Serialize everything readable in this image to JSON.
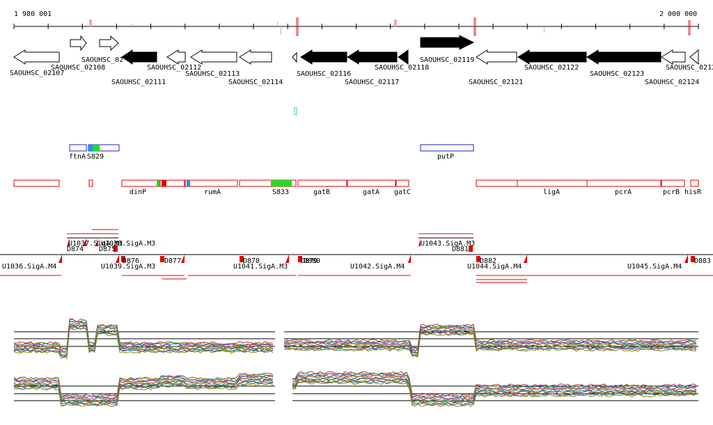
{
  "ruler": {
    "start_label": "1 980 001",
    "end_label": "2 000 000"
  },
  "genes": [
    {
      "label": "SAOUHSC_02107",
      "strand": "-",
      "fill": "open"
    },
    {
      "label": "SAOUHSC_02108",
      "strand": "+",
      "fill": "open"
    },
    {
      "label": "SAOUHSC_02",
      "strand": "+",
      "fill": "open"
    },
    {
      "label": "SAOUHSC_02111",
      "strand": "-",
      "fill": "solid"
    },
    {
      "label": "SAOUHSC_02112",
      "strand": "-",
      "fill": "open"
    },
    {
      "label": "SAOUHSC_02113",
      "strand": "-",
      "fill": "open"
    },
    {
      "label": "SAOUHSC_02114",
      "strand": "-",
      "fill": "open"
    },
    {
      "label": "SAOUHSC_02116",
      "strand": "-",
      "fill": "solid"
    },
    {
      "label": "SAOUHSC_02117",
      "strand": "-",
      "fill": "solid"
    },
    {
      "label": "SAOUHSC_02118",
      "strand": "-",
      "fill": "solid"
    },
    {
      "label": "SAOUHSC_02119",
      "strand": "+",
      "fill": "solid"
    },
    {
      "label": "SAOUHSC_02121",
      "strand": "-",
      "fill": "open"
    },
    {
      "label": "SAOUHSC_02122",
      "strand": "-",
      "fill": "solid"
    },
    {
      "label": "SAOUHSC_02123",
      "strand": "-",
      "fill": "solid"
    },
    {
      "label": "SAOUHSC_02124",
      "strand": "-",
      "fill": "open"
    },
    {
      "label": "SAOUHSC_0212",
      "strand": "-",
      "fill": "open"
    }
  ],
  "blue_features": [
    "ftnA",
    "S829",
    "putP"
  ],
  "red_features": [
    "dinP",
    "rumA",
    "S833",
    "gatB",
    "gatA",
    "gatC",
    "ligA",
    "pcrA",
    "pcrB",
    "hisR"
  ],
  "upper_tus": [
    "U1037.SigA.M3",
    "U1038.SigA.M3",
    "D874",
    "D875",
    "U1043.SigA.M3",
    "D881"
  ],
  "lower_tus": [
    "U1036.SigA.M4",
    "U1039.SigA.M3",
    "D876",
    "D877",
    "D878",
    "U1041.SigA.M3",
    "D879",
    "D880",
    "U1042.SigA.M4",
    "D882",
    "U1044.SigA.M4",
    "U1045.SigA.M4",
    "D883"
  ],
  "colors": {
    "gene_solid": "#000000",
    "feature_outline": "#e00000",
    "blue_outline": "#2020b0",
    "highlight_green": "#22dd22",
    "highlight_blue": "#1e90ff",
    "tick_cyan": "#33cccc"
  }
}
